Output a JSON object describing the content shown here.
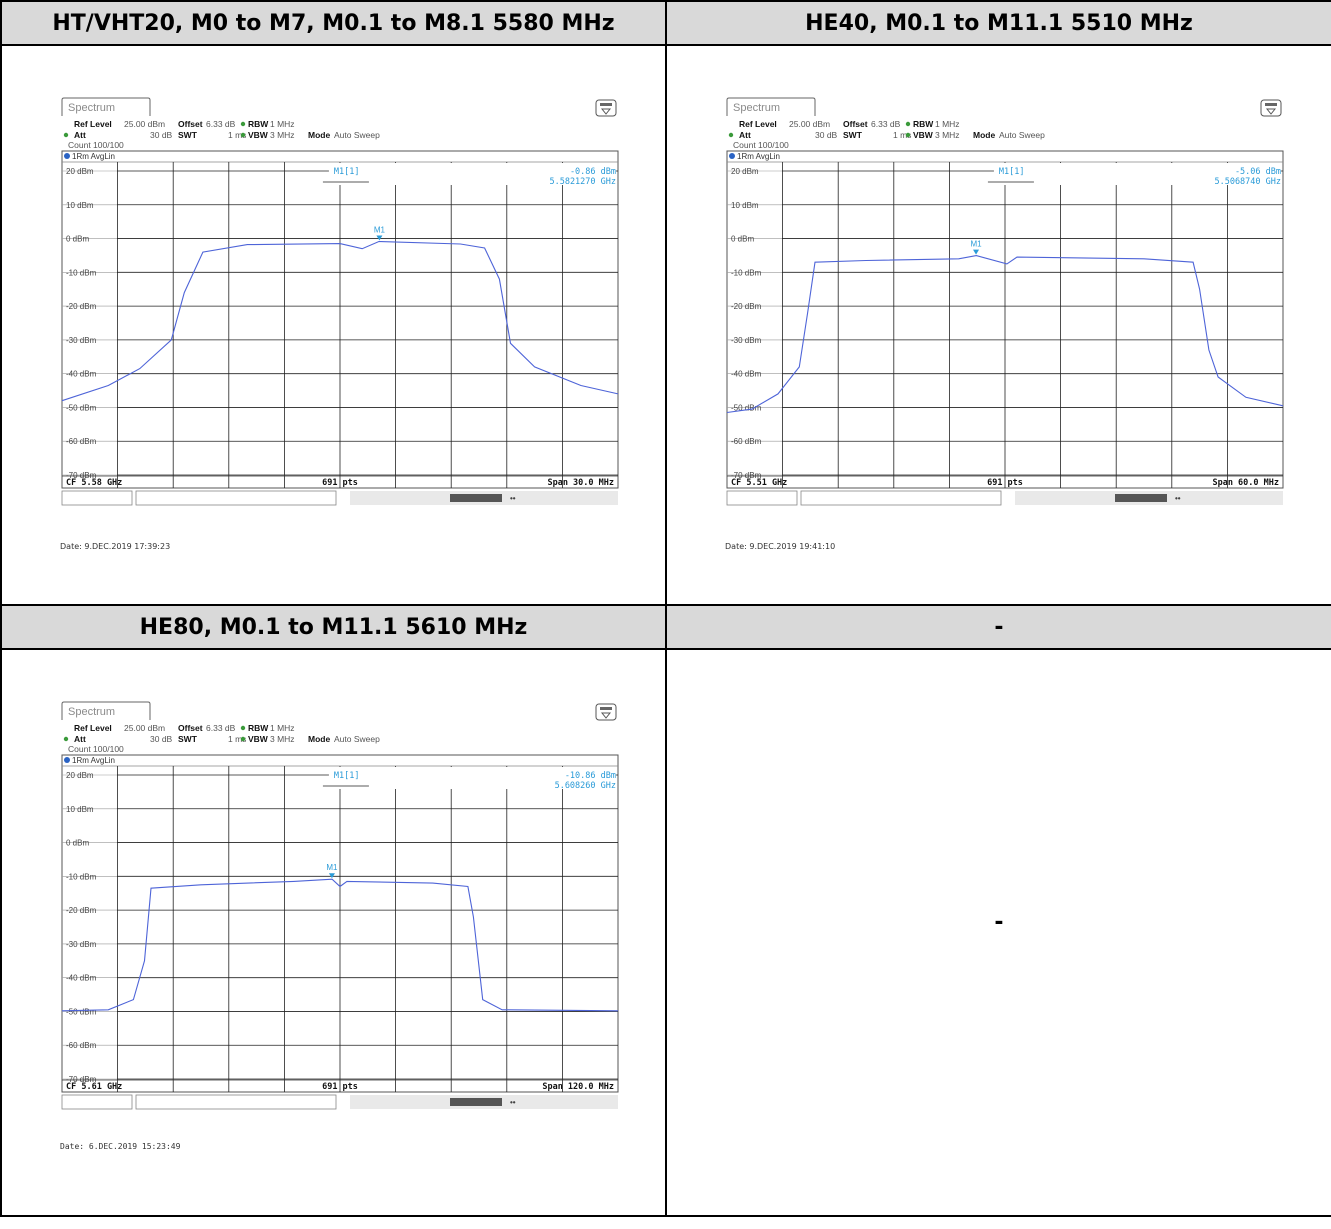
{
  "cells": [
    {
      "header": "HT/VHT20, M0 to M7, M0.1 to M8.1  5580 MHz",
      "spectrum": {
        "tab": "Spectrum",
        "ref_level_label": "Ref Level",
        "ref_level": "25.00 dBm",
        "offset_label": "Offset",
        "offset": "6.33 dB",
        "rbw_label": "RBW",
        "rbw": "1 MHz",
        "att_label": "Att",
        "att": "30 dB",
        "swt_label": "SWT",
        "swt": "1 ms",
        "vbw_label": "VBW",
        "vbw": "3 MHz",
        "mode_label": "Mode",
        "mode": "Auto Sweep",
        "count": "Count 100/100",
        "trace": "1Rm AvgLin",
        "marker_name": "M1[1]",
        "marker_level": "-0.86 dBm",
        "marker_freq": "5.5821270 GHz",
        "marker_tag": "M1",
        "cf": "CF 5.58 GHz",
        "pts": "691 pts",
        "span": "Span 30.0 MHz",
        "date": "Date: 9.DEC.2019  17:39:23"
      }
    },
    {
      "header": "HE40,  M0.1 to M11.1  5510 MHz",
      "spectrum": {
        "tab": "Spectrum",
        "ref_level_label": "Ref Level",
        "ref_level": "25.00 dBm",
        "offset_label": "Offset",
        "offset": "6.33 dB",
        "rbw_label": "RBW",
        "rbw": "1 MHz",
        "att_label": "Att",
        "att": "30 dB",
        "swt_label": "SWT",
        "swt": "1 ms",
        "vbw_label": "VBW",
        "vbw": "3 MHz",
        "mode_label": "Mode",
        "mode": "Auto Sweep",
        "count": "Count 100/100",
        "trace": "1Rm AvgLin",
        "marker_name": "M1[1]",
        "marker_level": "-5.06 dBm",
        "marker_freq": "5.5068740 GHz",
        "marker_tag": "M1",
        "cf": "CF 5.51 GHz",
        "pts": "691 pts",
        "span": "Span 60.0 MHz",
        "date": "Date: 9.DEC.2019  19:41:10"
      }
    },
    {
      "header": "HE80,  M0.1 to M11.1  5610 MHz",
      "spectrum": {
        "tab": "Spectrum",
        "ref_level_label": "Ref Level",
        "ref_level": "25.00 dBm",
        "offset_label": "Offset",
        "offset": "6.33 dB",
        "rbw_label": "RBW",
        "rbw": "1 MHz",
        "att_label": "Att",
        "att": "30 dB",
        "swt_label": "SWT",
        "swt": "1 ms",
        "vbw_label": "VBW",
        "vbw": "3 MHz",
        "mode_label": "Mode",
        "mode": "Auto Sweep",
        "count": "Count 100/100",
        "trace": "1Rm AvgLin",
        "marker_name": "M1[1]",
        "marker_level": "-10.86 dBm",
        "marker_freq": "5.608260 GHz",
        "marker_tag": "M1",
        "cf": "CF 5.61 GHz",
        "pts": "691 pts",
        "span": "Span 120.0 MHz",
        "date": "Date: 6.DEC.2019  15:23:49"
      }
    },
    {
      "header": "-",
      "body": "-"
    }
  ],
  "chart_data": [
    {
      "type": "line",
      "title": "HT/VHT20, M0 to M7, M0.1 to M8.1  5580 MHz",
      "xlabel": "",
      "ylabel": "",
      "xlim": [
        5565.0,
        5595.0
      ],
      "ylim": [
        -75,
        25
      ],
      "yticks": [
        "20 dBm",
        "10 dBm",
        "0 dBm",
        "-10 dBm",
        "-20 dBm",
        "-30 dBm",
        "-40 dBm",
        "-50 dBm",
        "-60 dBm",
        "-70 dBm"
      ],
      "grid": true,
      "series": [
        {
          "name": "1Rm AvgLin",
          "color": "#4e64d8",
          "x": [
            5565.0,
            5567.5,
            5569.2,
            5570.9,
            5571.6,
            5572.6,
            5575.0,
            5580.0,
            5581.2,
            5582.1,
            5586.5,
            5587.8,
            5588.6,
            5589.2,
            5590.5,
            5593.0,
            5595.0
          ],
          "y": [
            -48.0,
            -43.5,
            -38.5,
            -30.0,
            -16.0,
            -4.0,
            -1.8,
            -1.5,
            -3.0,
            -0.86,
            -1.6,
            -2.8,
            -12.0,
            -31.0,
            -38.0,
            -43.5,
            -46.0
          ]
        }
      ],
      "marker": {
        "x": 5582.127,
        "y": -0.86,
        "label": "M1"
      }
    },
    {
      "type": "line",
      "title": "HE40,  M0.1 to M11.1  5510 MHz",
      "xlabel": "",
      "ylabel": "",
      "xlim": [
        5480.0,
        5540.0
      ],
      "ylim": [
        -75,
        25
      ],
      "yticks": [
        "20 dBm",
        "10 dBm",
        "0 dBm",
        "-10 dBm",
        "-20 dBm",
        "-30 dBm",
        "-40 dBm",
        "-50 dBm",
        "-60 dBm",
        "-70 dBm"
      ],
      "grid": true,
      "series": [
        {
          "name": "1Rm AvgLin",
          "color": "#4e64d8",
          "x": [
            5480.0,
            5482.7,
            5485.5,
            5487.8,
            5488.7,
            5489.5,
            5495.0,
            5505.0,
            5506.9,
            5510.2,
            5511.3,
            5525.0,
            5530.3,
            5531.0,
            5532.0,
            5533.0,
            5536.0,
            5540.0
          ],
          "y": [
            -51.5,
            -50.5,
            -46.0,
            -38.0,
            -22.0,
            -7.0,
            -6.5,
            -6.0,
            -5.06,
            -7.5,
            -5.5,
            -6.0,
            -7.0,
            -15.0,
            -33.0,
            -41.0,
            -47.0,
            -49.5
          ]
        }
      ],
      "marker": {
        "x": 5506.874,
        "y": -5.06,
        "label": "M1"
      }
    },
    {
      "type": "line",
      "title": "HE80,  M0.1 to M11.1  5610 MHz",
      "xlabel": "",
      "ylabel": "",
      "xlim": [
        5550.0,
        5670.0
      ],
      "ylim": [
        -75,
        25
      ],
      "yticks": [
        "20 dBm",
        "10 dBm",
        "0 dBm",
        "-10 dBm",
        "-20 dBm",
        "-30 dBm",
        "-40 dBm",
        "-50 dBm",
        "-60 dBm",
        "-70 dBm"
      ],
      "grid": true,
      "series": [
        {
          "name": "1Rm AvgLin",
          "color": "#4e64d8",
          "x": [
            5550.0,
            5560.0,
            5565.4,
            5567.8,
            5569.2,
            5580.0,
            5600.0,
            5608.3,
            5610.0,
            5611.5,
            5630.0,
            5637.6,
            5638.8,
            5640.8,
            5645.0,
            5670.0
          ],
          "y": [
            -49.8,
            -49.5,
            -46.5,
            -35.0,
            -13.5,
            -12.5,
            -11.5,
            -10.86,
            -13.0,
            -11.5,
            -12.0,
            -13.0,
            -22.0,
            -46.5,
            -49.5,
            -49.8
          ]
        }
      ],
      "marker": {
        "x": 5608.26,
        "y": -10.86,
        "label": "M1"
      }
    }
  ]
}
